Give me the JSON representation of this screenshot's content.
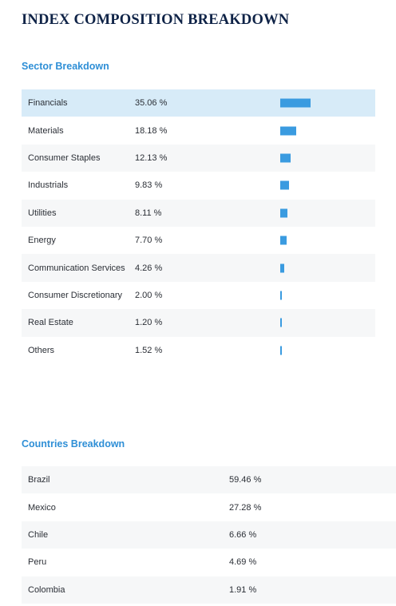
{
  "title": "INDEX COMPOSITION BREAKDOWN",
  "colors": {
    "title": "#0f2347",
    "accent": "#2f8fd6",
    "bar": "#3a9be0",
    "highlight_row": "#d7ebf8",
    "alt_row": "#f6f7f8"
  },
  "sector": {
    "heading": "Sector Breakdown",
    "rows": [
      {
        "name": "Financials",
        "pct_label": "35.06 %",
        "value": 35.06
      },
      {
        "name": "Materials",
        "pct_label": "18.18 %",
        "value": 18.18
      },
      {
        "name": "Consumer Staples",
        "pct_label": "12.13 %",
        "value": 12.13
      },
      {
        "name": "Industrials",
        "pct_label": "9.83 %",
        "value": 9.83
      },
      {
        "name": "Utilities",
        "pct_label": "8.11 %",
        "value": 8.11
      },
      {
        "name": "Energy",
        "pct_label": "7.70 %",
        "value": 7.7
      },
      {
        "name": "Communication Services",
        "pct_label": "4.26 %",
        "value": 4.26
      },
      {
        "name": "Consumer Discretionary",
        "pct_label": "2.00 %",
        "value": 2.0
      },
      {
        "name": "Real Estate",
        "pct_label": "1.20 %",
        "value": 1.2
      },
      {
        "name": "Others",
        "pct_label": "1.52 %",
        "value": 1.52
      }
    ]
  },
  "countries": {
    "heading": "Countries Breakdown",
    "rows": [
      {
        "name": "Brazil",
        "pct_label": "59.46 %"
      },
      {
        "name": "Mexico",
        "pct_label": "27.28 %"
      },
      {
        "name": "Chile",
        "pct_label": "6.66 %"
      },
      {
        "name": "Peru",
        "pct_label": "4.69 %"
      },
      {
        "name": "Colombia",
        "pct_label": "1.91 %"
      }
    ]
  }
}
